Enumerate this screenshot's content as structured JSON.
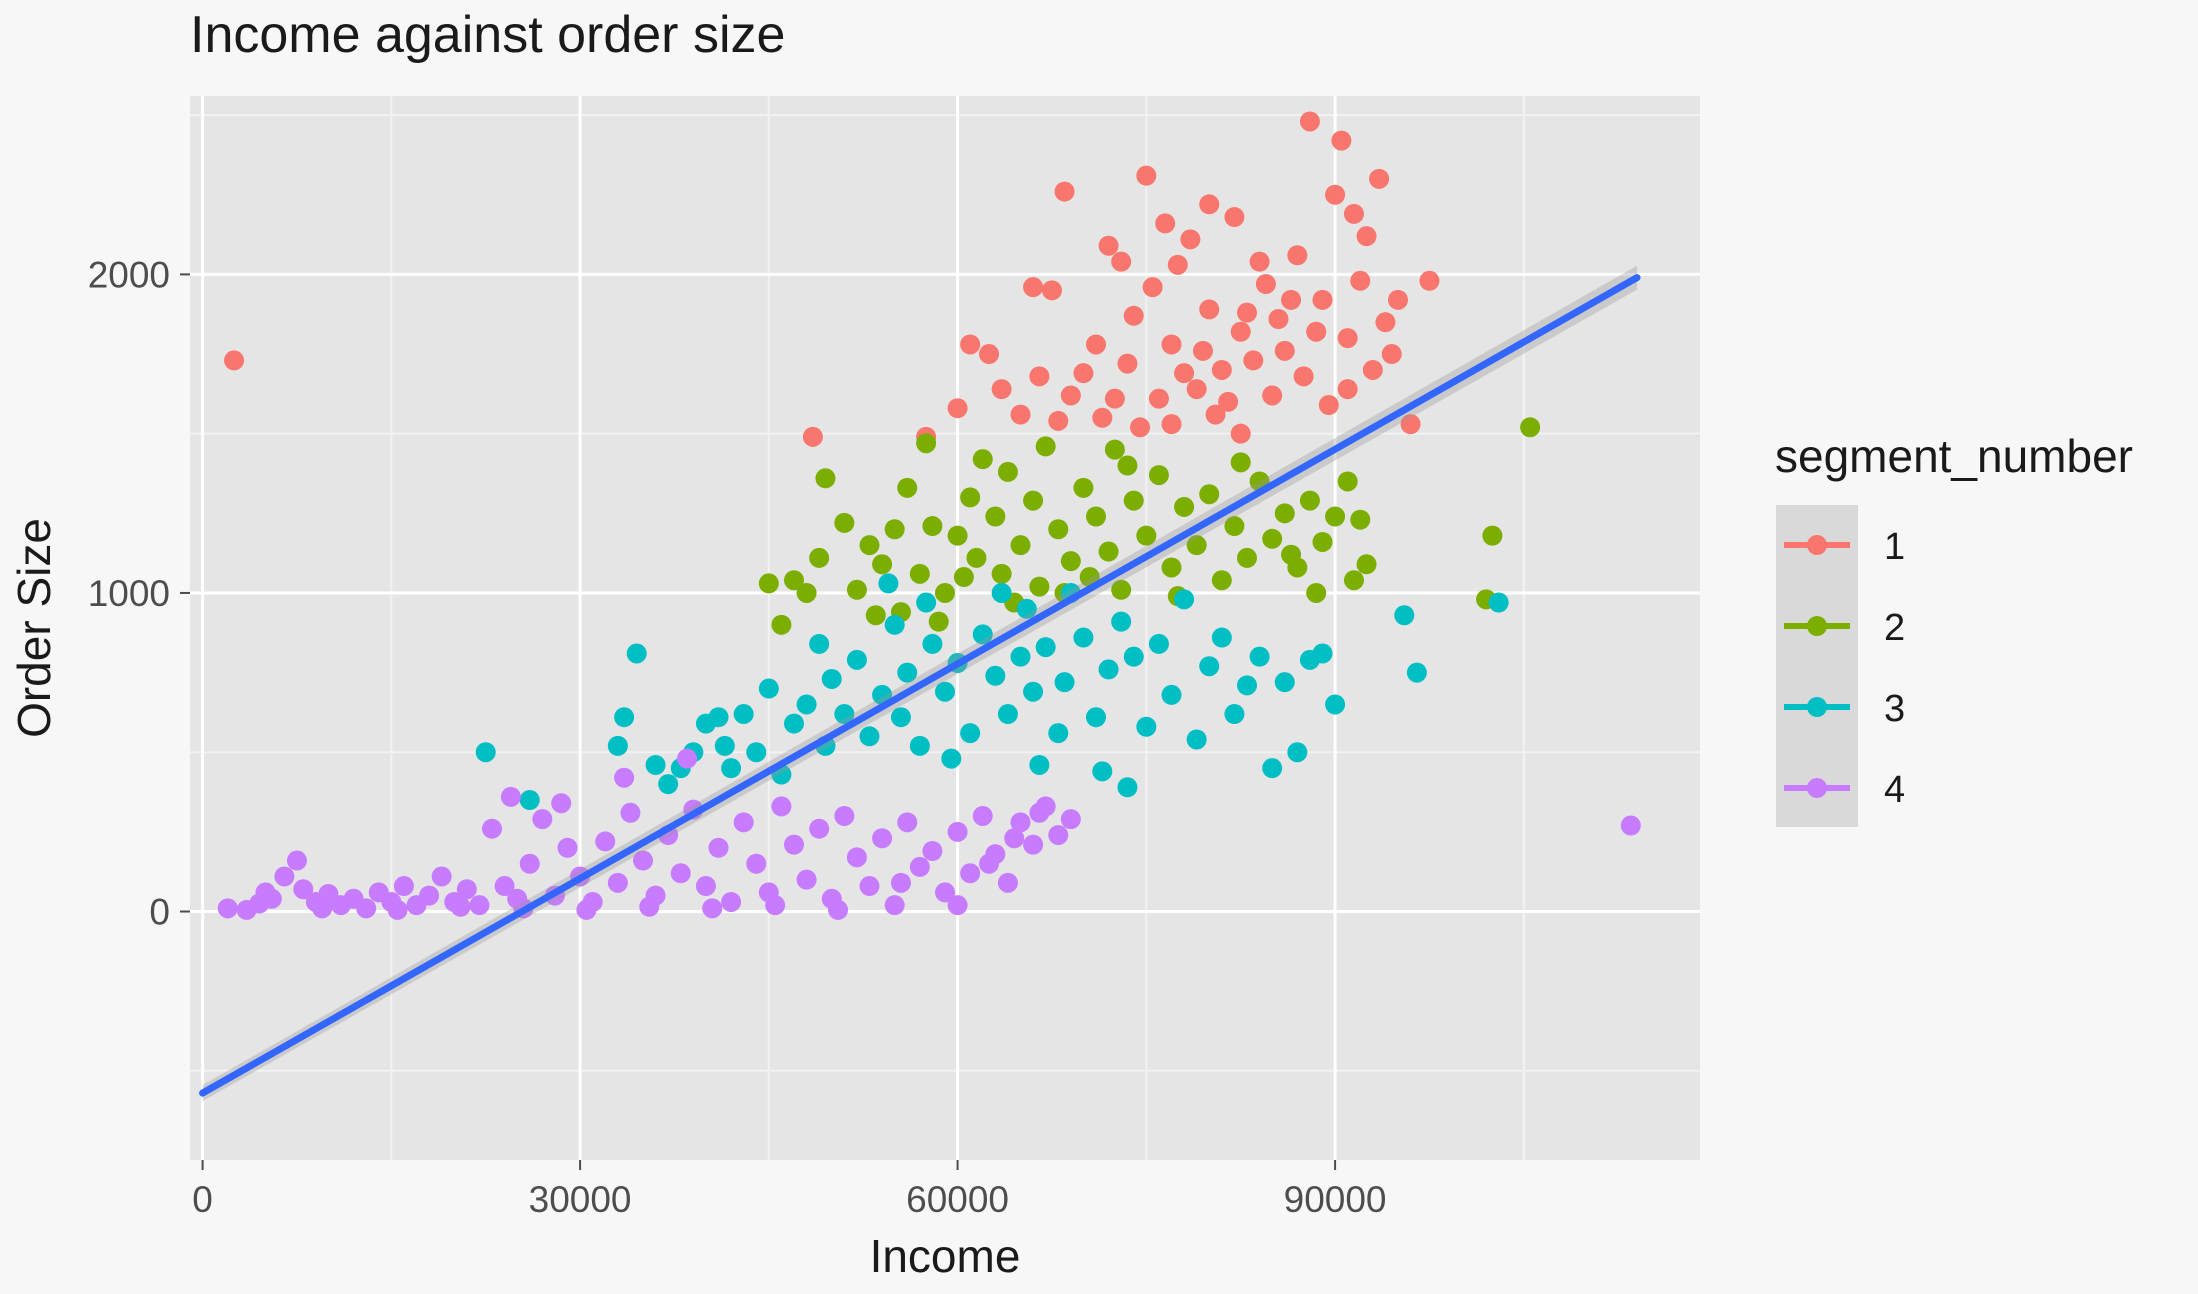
{
  "chart_data": {
    "type": "scatter",
    "title": "Income against order size",
    "xlabel": "Income",
    "ylabel": "Order Size",
    "xlim": [
      -1000,
      119000
    ],
    "ylim": [
      -780,
      2560
    ],
    "x_ticks": [
      0,
      30000,
      60000,
      90000
    ],
    "y_ticks": [
      0,
      1000,
      2000
    ],
    "x_tick_labels": [
      "0",
      "30000",
      "60000",
      "90000"
    ],
    "y_tick_labels": [
      "0",
      "1000",
      "2000"
    ],
    "grid": true,
    "legend": {
      "title": "segment_number",
      "placement": "right",
      "entries": [
        "1",
        "2",
        "3",
        "4"
      ]
    },
    "trend_line": {
      "method": "linear",
      "color": "#3366ff",
      "x": [
        0,
        114000
      ],
      "y": [
        -570,
        1990
      ]
    },
    "series": [
      {
        "name": "1",
        "color": "#f8766d",
        "points": [
          [
            2500,
            1730
          ],
          [
            48500,
            1490
          ],
          [
            57500,
            1490
          ],
          [
            60000,
            1580
          ],
          [
            61000,
            1780
          ],
          [
            62500,
            1750
          ],
          [
            63500,
            1640
          ],
          [
            65000,
            1560
          ],
          [
            66000,
            1960
          ],
          [
            67500,
            1950
          ],
          [
            68500,
            2260
          ],
          [
            70000,
            1690
          ],
          [
            71000,
            1780
          ],
          [
            72000,
            2090
          ],
          [
            73000,
            2040
          ],
          [
            74000,
            1870
          ],
          [
            75000,
            2310
          ],
          [
            75500,
            1960
          ],
          [
            76500,
            2160
          ],
          [
            77000,
            1780
          ],
          [
            77500,
            2030
          ],
          [
            78500,
            2110
          ],
          [
            79000,
            1640
          ],
          [
            80000,
            2220
          ],
          [
            80500,
            1560
          ],
          [
            81000,
            1700
          ],
          [
            82000,
            2180
          ],
          [
            82500,
            1820
          ],
          [
            83000,
            1880
          ],
          [
            84000,
            2040
          ],
          [
            85000,
            1620
          ],
          [
            86000,
            1760
          ],
          [
            86500,
            1920
          ],
          [
            87000,
            2060
          ],
          [
            88000,
            2480
          ],
          [
            88500,
            1820
          ],
          [
            89000,
            1920
          ],
          [
            90000,
            2250
          ],
          [
            90500,
            2420
          ],
          [
            91000,
            1640
          ],
          [
            91500,
            2190
          ],
          [
            92000,
            1980
          ],
          [
            92500,
            2120
          ],
          [
            93500,
            2300
          ],
          [
            94000,
            1850
          ],
          [
            94500,
            1750
          ],
          [
            95000,
            1920
          ],
          [
            96000,
            1530
          ],
          [
            97500,
            1980
          ],
          [
            66500,
            1680
          ],
          [
            69000,
            1620
          ],
          [
            71500,
            1550
          ],
          [
            73500,
            1720
          ],
          [
            76000,
            1610
          ],
          [
            78000,
            1690
          ],
          [
            79500,
            1760
          ],
          [
            81500,
            1600
          ],
          [
            83500,
            1730
          ],
          [
            85500,
            1860
          ],
          [
            87500,
            1680
          ],
          [
            89500,
            1590
          ],
          [
            91000,
            1800
          ],
          [
            93000,
            1700
          ],
          [
            74500,
            1520
          ],
          [
            77000,
            1530
          ],
          [
            80000,
            1890
          ],
          [
            82500,
            1500
          ],
          [
            72500,
            1610
          ],
          [
            68000,
            1540
          ],
          [
            84500,
            1970
          ]
        ]
      },
      {
        "name": "2",
        "color": "#7cae00",
        "points": [
          [
            45000,
            1030
          ],
          [
            46000,
            900
          ],
          [
            47000,
            1040
          ],
          [
            48000,
            1000
          ],
          [
            49000,
            1110
          ],
          [
            49500,
            1360
          ],
          [
            51000,
            1220
          ],
          [
            52000,
            1010
          ],
          [
            53000,
            1150
          ],
          [
            54000,
            1090
          ],
          [
            55000,
            1200
          ],
          [
            55500,
            940
          ],
          [
            56000,
            1330
          ],
          [
            57000,
            1060
          ],
          [
            57500,
            1470
          ],
          [
            58000,
            1210
          ],
          [
            59000,
            1000
          ],
          [
            60000,
            1180
          ],
          [
            61000,
            1300
          ],
          [
            61500,
            1110
          ],
          [
            62000,
            1420
          ],
          [
            63000,
            1240
          ],
          [
            63500,
            1060
          ],
          [
            64000,
            1380
          ],
          [
            65000,
            1150
          ],
          [
            66000,
            1290
          ],
          [
            66500,
            1020
          ],
          [
            67000,
            1460
          ],
          [
            68000,
            1200
          ],
          [
            69000,
            1100
          ],
          [
            70000,
            1330
          ],
          [
            71000,
            1240
          ],
          [
            72000,
            1130
          ],
          [
            72500,
            1450
          ],
          [
            73000,
            1010
          ],
          [
            74000,
            1290
          ],
          [
            75000,
            1180
          ],
          [
            76000,
            1370
          ],
          [
            77000,
            1080
          ],
          [
            78000,
            1270
          ],
          [
            79000,
            1150
          ],
          [
            80000,
            1310
          ],
          [
            81000,
            1040
          ],
          [
            82000,
            1210
          ],
          [
            83000,
            1110
          ],
          [
            84000,
            1350
          ],
          [
            85000,
            1170
          ],
          [
            86000,
            1250
          ],
          [
            87000,
            1080
          ],
          [
            88000,
            1290
          ],
          [
            89000,
            1160
          ],
          [
            90000,
            1240
          ],
          [
            91000,
            1350
          ],
          [
            91500,
            1040
          ],
          [
            92000,
            1230
          ],
          [
            92500,
            1090
          ],
          [
            102000,
            980
          ],
          [
            102500,
            1180
          ],
          [
            105500,
            1520
          ],
          [
            60500,
            1050
          ],
          [
            64500,
            970
          ],
          [
            68500,
            1000
          ],
          [
            73500,
            1400
          ],
          [
            77500,
            990
          ],
          [
            82500,
            1410
          ],
          [
            86500,
            1120
          ],
          [
            88500,
            1000
          ],
          [
            70500,
            1050
          ],
          [
            58500,
            910
          ],
          [
            53500,
            930
          ]
        ]
      },
      {
        "name": "3",
        "color": "#00bfc4",
        "points": [
          [
            22500,
            500
          ],
          [
            26000,
            350
          ],
          [
            33000,
            520
          ],
          [
            33500,
            610
          ],
          [
            34500,
            810
          ],
          [
            36000,
            460
          ],
          [
            37000,
            400
          ],
          [
            38000,
            450
          ],
          [
            39000,
            500
          ],
          [
            40000,
            590
          ],
          [
            41000,
            610
          ],
          [
            41500,
            520
          ],
          [
            42000,
            450
          ],
          [
            43000,
            620
          ],
          [
            44000,
            500
          ],
          [
            45000,
            700
          ],
          [
            46000,
            430
          ],
          [
            47000,
            590
          ],
          [
            48000,
            650
          ],
          [
            49000,
            840
          ],
          [
            49500,
            520
          ],
          [
            50000,
            730
          ],
          [
            51000,
            620
          ],
          [
            52000,
            790
          ],
          [
            53000,
            550
          ],
          [
            54000,
            680
          ],
          [
            55000,
            900
          ],
          [
            55500,
            610
          ],
          [
            56000,
            750
          ],
          [
            57000,
            520
          ],
          [
            58000,
            840
          ],
          [
            59000,
            690
          ],
          [
            60000,
            780
          ],
          [
            61000,
            560
          ],
          [
            62000,
            870
          ],
          [
            63000,
            740
          ],
          [
            64000,
            620
          ],
          [
            65000,
            800
          ],
          [
            65500,
            950
          ],
          [
            66000,
            690
          ],
          [
            67000,
            830
          ],
          [
            68000,
            560
          ],
          [
            68500,
            720
          ],
          [
            69000,
            1000
          ],
          [
            70000,
            860
          ],
          [
            71000,
            610
          ],
          [
            72000,
            760
          ],
          [
            73000,
            910
          ],
          [
            74000,
            800
          ],
          [
            75000,
            580
          ],
          [
            76000,
            840
          ],
          [
            77000,
            680
          ],
          [
            78000,
            980
          ],
          [
            79000,
            540
          ],
          [
            80000,
            770
          ],
          [
            81000,
            860
          ],
          [
            82000,
            620
          ],
          [
            83000,
            710
          ],
          [
            84000,
            800
          ],
          [
            85000,
            450
          ],
          [
            86000,
            720
          ],
          [
            87000,
            500
          ],
          [
            88000,
            790
          ],
          [
            89000,
            810
          ],
          [
            90000,
            650
          ],
          [
            95500,
            930
          ],
          [
            96500,
            750
          ],
          [
            103000,
            970
          ],
          [
            73500,
            390
          ],
          [
            71500,
            440
          ],
          [
            66500,
            460
          ],
          [
            59500,
            480
          ],
          [
            63500,
            1000
          ],
          [
            57500,
            970
          ],
          [
            54500,
            1030
          ]
        ]
      },
      {
        "name": "4",
        "color": "#c77cff",
        "points": [
          [
            2000,
            10
          ],
          [
            3500,
            5
          ],
          [
            4500,
            25
          ],
          [
            5500,
            40
          ],
          [
            6500,
            110
          ],
          [
            7500,
            160
          ],
          [
            8000,
            70
          ],
          [
            9000,
            30
          ],
          [
            10000,
            55
          ],
          [
            11000,
            20
          ],
          [
            12000,
            40
          ],
          [
            13000,
            10
          ],
          [
            14000,
            60
          ],
          [
            15000,
            30
          ],
          [
            16000,
            80
          ],
          [
            17000,
            20
          ],
          [
            18000,
            50
          ],
          [
            19000,
            110
          ],
          [
            20000,
            30
          ],
          [
            21000,
            70
          ],
          [
            22000,
            20
          ],
          [
            23000,
            260
          ],
          [
            24000,
            80
          ],
          [
            24500,
            360
          ],
          [
            25000,
            40
          ],
          [
            26000,
            150
          ],
          [
            27000,
            290
          ],
          [
            28000,
            50
          ],
          [
            29000,
            200
          ],
          [
            30000,
            110
          ],
          [
            31000,
            30
          ],
          [
            32000,
            220
          ],
          [
            33000,
            90
          ],
          [
            34000,
            310
          ],
          [
            35000,
            160
          ],
          [
            36000,
            50
          ],
          [
            37000,
            240
          ],
          [
            38000,
            120
          ],
          [
            39000,
            320
          ],
          [
            40000,
            80
          ],
          [
            41000,
            200
          ],
          [
            42000,
            30
          ],
          [
            43000,
            280
          ],
          [
            44000,
            150
          ],
          [
            45000,
            60
          ],
          [
            46000,
            330
          ],
          [
            47000,
            210
          ],
          [
            48000,
            100
          ],
          [
            49000,
            260
          ],
          [
            50000,
            40
          ],
          [
            51000,
            300
          ],
          [
            52000,
            170
          ],
          [
            53000,
            80
          ],
          [
            54000,
            230
          ],
          [
            55000,
            20
          ],
          [
            56000,
            280
          ],
          [
            57000,
            140
          ],
          [
            58000,
            190
          ],
          [
            59000,
            60
          ],
          [
            60000,
            250
          ],
          [
            61000,
            120
          ],
          [
            62000,
            300
          ],
          [
            63000,
            180
          ],
          [
            64000,
            90
          ],
          [
            65000,
            280
          ],
          [
            66000,
            210
          ],
          [
            67000,
            330
          ],
          [
            68000,
            240
          ],
          [
            69000,
            290
          ],
          [
            60000,
            20
          ],
          [
            62500,
            150
          ],
          [
            64500,
            230
          ],
          [
            66500,
            310
          ],
          [
            113500,
            270
          ],
          [
            5000,
            60
          ],
          [
            9500,
            10
          ],
          [
            15500,
            5
          ],
          [
            20500,
            15
          ],
          [
            25500,
            10
          ],
          [
            30500,
            5
          ],
          [
            35500,
            15
          ],
          [
            40500,
            10
          ],
          [
            45500,
            20
          ],
          [
            50500,
            5
          ],
          [
            55500,
            90
          ],
          [
            38500,
            480
          ],
          [
            33500,
            420
          ],
          [
            28500,
            340
          ]
        ]
      }
    ]
  }
}
